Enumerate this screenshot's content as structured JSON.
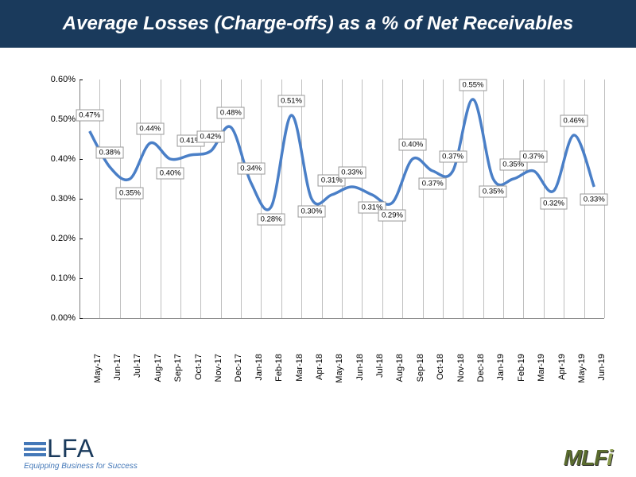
{
  "title": "Average Losses (Charge-offs) as a % of Net Receivables",
  "title_bg": "#1a3a5c",
  "title_color": "#ffffff",
  "chart": {
    "type": "line",
    "line_color": "#4a7fc7",
    "line_width": 3.5,
    "grid_color": "#bfbfbf",
    "axis_color": "#7f7f7f",
    "background": "#ffffff",
    "label_border": "#999999",
    "label_bg": "#ffffff",
    "label_fontsize": 9.5,
    "ylim": [
      0,
      0.006
    ],
    "y_ticks": [
      0,
      0.001,
      0.002,
      0.003,
      0.004,
      0.005,
      0.006
    ],
    "y_tick_labels": [
      "0.00%",
      "0.10%",
      "0.20%",
      "0.30%",
      "0.40%",
      "0.50%",
      "0.60%"
    ],
    "categories": [
      "May-17",
      "Jun-17",
      "Jul-17",
      "Aug-17",
      "Sep-17",
      "Oct-17",
      "Nov-17",
      "Dec-17",
      "Jan-18",
      "Feb-18",
      "Mar-18",
      "Apr-18",
      "May-18",
      "Jun-18",
      "Jul-18",
      "Aug-18",
      "Sep-18",
      "Oct-18",
      "Nov-18",
      "Dec-18",
      "Jan-19",
      "Feb-19",
      "Mar-19",
      "Apr-19",
      "May-19",
      "Jun-19"
    ],
    "values": [
      0.47,
      0.38,
      0.35,
      0.44,
      0.4,
      0.41,
      0.42,
      0.48,
      0.34,
      0.28,
      0.51,
      0.3,
      0.31,
      0.33,
      0.31,
      0.29,
      0.4,
      0.37,
      0.37,
      0.55,
      0.35,
      0.35,
      0.37,
      0.32,
      0.46,
      0.33
    ],
    "value_labels": [
      "0.47%",
      "0.38%",
      "0.35%",
      "0.44%",
      "0.40%",
      "0.41%",
      "0.42%",
      "0.48%",
      "0.34%",
      "0.28%",
      "0.51%",
      "0.30%",
      "0.31%",
      "0.33%",
      "0.31%",
      "0.29%",
      "0.40%",
      "0.37%",
      "0.37%",
      "0.55%",
      "0.35%",
      "0.35%",
      "0.37%",
      "0.32%",
      "0.46%",
      "0.33%"
    ],
    "label_dy": [
      -20,
      -18,
      18,
      -18,
      18,
      -18,
      -18,
      -18,
      -18,
      16,
      -18,
      16,
      -18,
      -18,
      16,
      16,
      -18,
      16,
      -18,
      -18,
      16,
      -18,
      -18,
      16,
      -18,
      16
    ]
  },
  "footer": {
    "elfa_tagline": "Equipping Business for Success",
    "elfa_text": "LFA",
    "mlfi_text": "MLFi"
  }
}
